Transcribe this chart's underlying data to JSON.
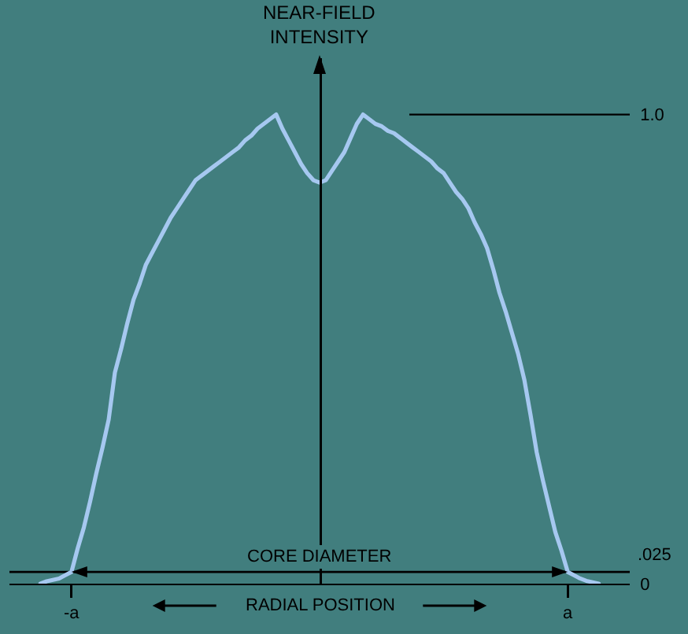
{
  "chart_data": {
    "type": "line",
    "ylabel": "NEAR-FIELD INTENSITY",
    "xlabel": "RADIAL POSITION",
    "categories": [
      null,
      null,
      null,
      null,
      null,
      "-a",
      null,
      null,
      null,
      null,
      null,
      null,
      null,
      null,
      null,
      null,
      null,
      null,
      null,
      null,
      null,
      null,
      null,
      null,
      null,
      null,
      null,
      null,
      null,
      null,
      null,
      null,
      null,
      null,
      null,
      null,
      null,
      null,
      null,
      null,
      null,
      null,
      null,
      null,
      null,
      null,
      null,
      null,
      null,
      null,
      null,
      null,
      null,
      null,
      null,
      null,
      null,
      null,
      null,
      null,
      null,
      null,
      null,
      null,
      null,
      null,
      null,
      null,
      null,
      null,
      null,
      null,
      null,
      null,
      null,
      null,
      null,
      null,
      null,
      null,
      null,
      null,
      null,
      null,
      null,
      "a",
      null,
      null,
      null,
      null,
      null
    ],
    "series": [
      {
        "color": "#a6c8f0",
        "values": [
          0,
          0.005,
          0.008,
          0.011,
          0.018,
          0.025,
          0.075,
          0.12,
          0.175,
          0.235,
          0.29,
          0.35,
          0.45,
          0.5,
          0.555,
          0.605,
          0.64,
          0.68,
          0.705,
          0.73,
          0.755,
          0.78,
          0.8,
          0.82,
          0.84,
          0.86,
          0.87,
          0.88,
          0.89,
          0.9,
          0.91,
          0.92,
          0.93,
          0.945,
          0.955,
          0.97,
          0.98,
          0.99,
          1,
          0.97,
          0.945,
          0.92,
          0.895,
          0.875,
          0.86,
          0.855,
          0.86,
          0.88,
          0.9,
          0.92,
          0.95,
          0.98,
          1,
          0.99,
          0.98,
          0.975,
          0.965,
          0.96,
          0.95,
          0.94,
          0.93,
          0.92,
          0.91,
          0.9,
          0.885,
          0.875,
          0.855,
          0.835,
          0.82,
          0.8,
          0.77,
          0.745,
          0.715,
          0.67,
          0.62,
          0.58,
          0.535,
          0.49,
          0.435,
          0.36,
          0.28,
          0.22,
          0.165,
          0.11,
          0.07,
          0.025,
          0.018,
          0.011,
          0.006,
          0.003,
          0
        ]
      }
    ],
    "ylim": [
      0,
      1.12
    ],
    "yticks": [
      0,
      {
        "value": 1,
        "label": "1.0"
      }
    ],
    "ref_lines": [
      {
        "axis": "y",
        "value": 0.025,
        "label": ".025"
      }
    ],
    "annotations": [
      {
        "text": "CORE DIAMETER",
        "y": 0.025
      }
    ],
    "grid": false,
    "marker": "none",
    "line_style": "solid"
  }
}
